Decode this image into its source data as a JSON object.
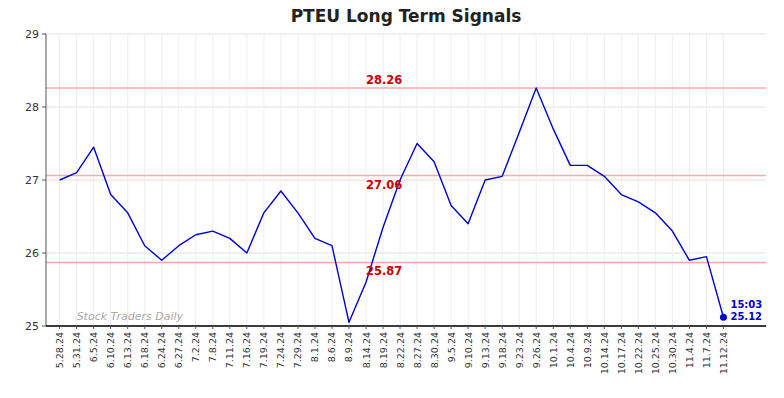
{
  "chart_data": {
    "type": "line",
    "title": "PTEU Long Term Signals",
    "categories": [
      "5.28.24",
      "5.31.24",
      "6.5.24",
      "6.10.24",
      "6.13.24",
      "6.18.24",
      "6.24.24",
      "6.27.24",
      "7.2.24",
      "7.8.24",
      "7.11.24",
      "7.16.24",
      "7.19.24",
      "7.24.24",
      "7.29.24",
      "8.1.24",
      "8.6.24",
      "8.9.24",
      "8.14.24",
      "8.19.24",
      "8.22.24",
      "8.27.24",
      "8.30.24",
      "9.5.24",
      "9.10.24",
      "9.13.24",
      "9.18.24",
      "9.23.24",
      "9.26.24",
      "10.1.24",
      "10.4.24",
      "10.9.24",
      "10.14.24",
      "10.17.24",
      "10.22.24",
      "10.25.24",
      "10.30.24",
      "11.4.24",
      "11.7.24",
      "11.12.24"
    ],
    "values": [
      27.0,
      27.1,
      27.45,
      26.8,
      26.55,
      26.1,
      25.9,
      26.1,
      26.25,
      26.3,
      26.2,
      26.0,
      26.55,
      26.85,
      26.55,
      26.2,
      26.1,
      25.05,
      25.6,
      26.35,
      27.0,
      27.5,
      27.25,
      26.65,
      26.4,
      27.0,
      27.05,
      27.65,
      28.26,
      27.7,
      27.2,
      27.2,
      27.05,
      26.8,
      26.7,
      26.55,
      26.3,
      25.9,
      25.95,
      25.12
    ],
    "color": "#0000cc",
    "ylim": [
      25.0,
      29.0
    ],
    "yticks": [
      25,
      26,
      27,
      28,
      29
    ],
    "grid": true,
    "reference_lines": [
      {
        "value": 28.26,
        "label": "28.26",
        "color": "#ffaaaa"
      },
      {
        "value": 27.06,
        "label": "27.06",
        "color": "#ffaaaa"
      },
      {
        "value": 25.87,
        "label": "25.87",
        "color": "#ffaaaa"
      }
    ],
    "last_point_labels": [
      "15:03",
      "25.12"
    ],
    "watermark": "Stock Traders Daily"
  }
}
